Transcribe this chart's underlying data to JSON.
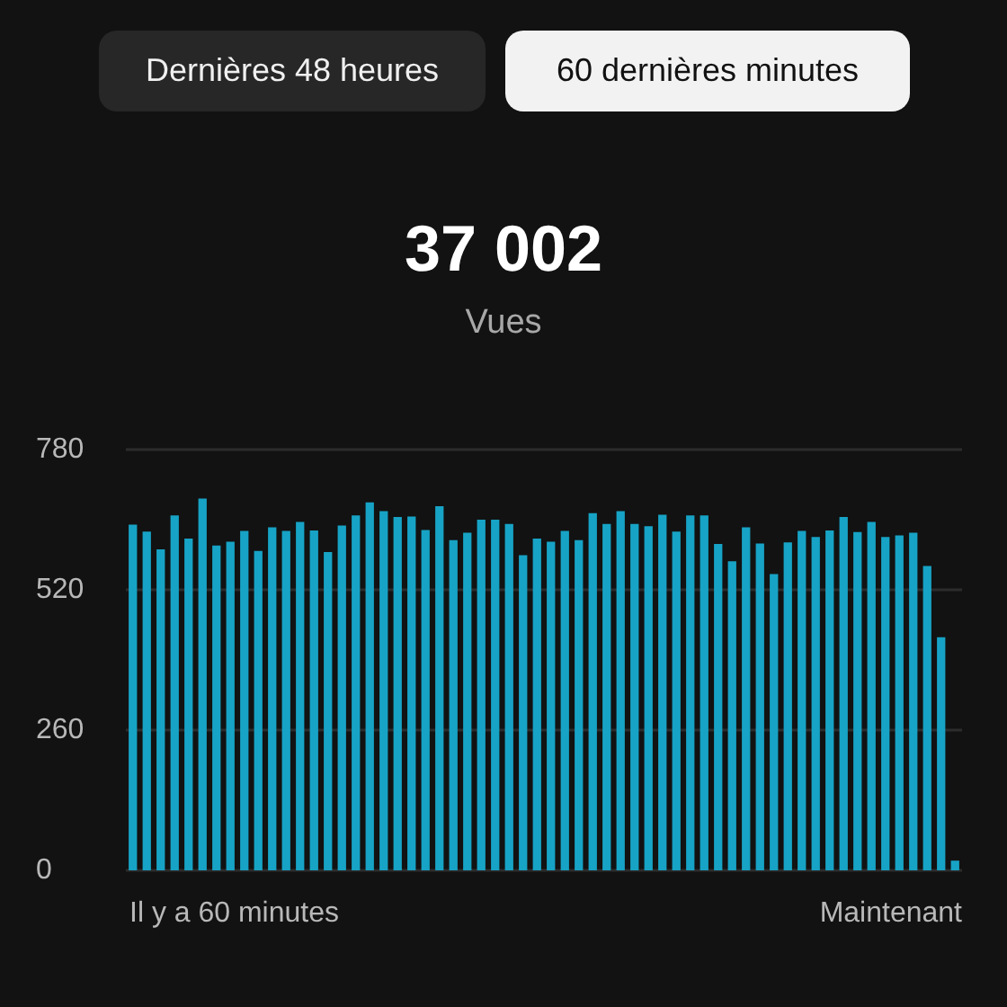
{
  "chart_data": {
    "type": "bar",
    "title": "37 002",
    "subtitle": "Vues",
    "annotations": [
      "Dernières 48 heures",
      "60 dernières minutes",
      "Il y a 60 minutes",
      "Maintenant"
    ],
    "categories": [
      null,
      null,
      null,
      null,
      null,
      null,
      null,
      null,
      null,
      null,
      null,
      null,
      null,
      null,
      null,
      null,
      null,
      null,
      null,
      null,
      null,
      null,
      null,
      null,
      null,
      null,
      null,
      null,
      null,
      null,
      null,
      null,
      null,
      null,
      null,
      null,
      null,
      null,
      null,
      null,
      null,
      null,
      null,
      null,
      null,
      null,
      null,
      null,
      null,
      null,
      null,
      null,
      null,
      null,
      null,
      null,
      null,
      null,
      null,
      null
    ],
    "values": [
      641,
      628,
      595,
      658,
      615,
      689,
      602,
      609,
      629,
      592,
      636,
      629,
      646,
      630,
      590,
      639,
      658,
      682,
      666,
      655,
      656,
      631,
      675,
      612,
      626,
      650,
      650,
      642,
      584,
      615,
      609,
      629,
      612,
      662,
      642,
      666,
      642,
      638,
      659,
      628,
      658,
      658,
      605,
      573,
      636,
      606,
      549,
      608,
      629,
      618,
      630,
      655,
      627,
      646,
      618,
      621,
      626,
      564,
      432,
      18
    ],
    "color": "#17a3c5",
    "ylim": [
      0,
      780
    ],
    "yticks": [
      0,
      260,
      520,
      780
    ],
    "grid": "y",
    "tick_labels": "y"
  }
}
